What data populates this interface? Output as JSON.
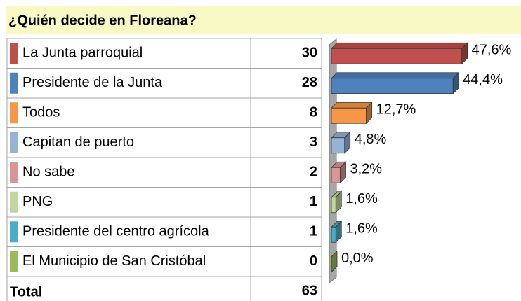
{
  "chart_data": {
    "type": "bar",
    "orientation": "horizontal",
    "title": "¿Quién decide en Floreana?",
    "categories": [
      "La Junta parroquial",
      "Presidente de la Junta",
      "Todos",
      "Capitan de puerto",
      "No sabe",
      "PNG",
      "Presidente del centro agrícola",
      "El Municipio de San Cristóbal"
    ],
    "counts": [
      30,
      28,
      8,
      3,
      2,
      1,
      1,
      0
    ],
    "values": [
      47.6,
      44.4,
      12.7,
      4.8,
      3.2,
      1.6,
      1.6,
      0.0
    ],
    "value_labels": [
      "47,6%",
      "44,4%",
      "12,7%",
      "4,8%",
      "3,2%",
      "1,6%",
      "1,6%",
      "0,0%"
    ],
    "colors": [
      "#c0504d",
      "#4f81bd",
      "#f79646",
      "#95b3d7",
      "#d99694",
      "#c3d69b",
      "#4bacc6",
      "#9bbb59"
    ],
    "total_label": "Total",
    "total": 63
  }
}
